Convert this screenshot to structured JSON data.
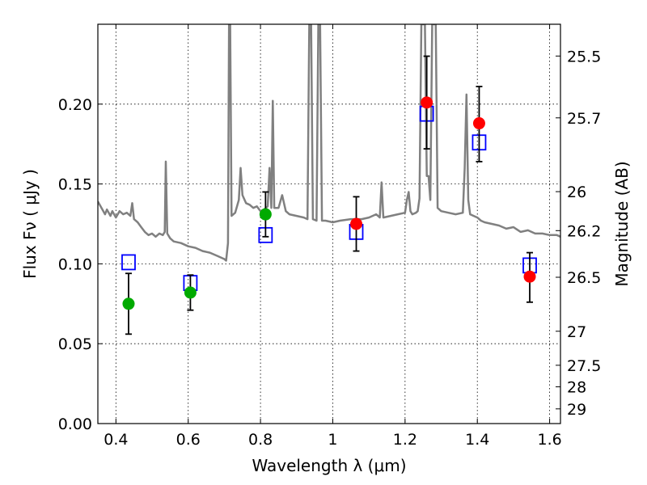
{
  "chart_data": {
    "type": "scatter",
    "title": "",
    "xlabel": "Wavelength  λ (μm)",
    "ylabel": "Flux  Fν  ( μJy )",
    "right_ylabel": "Magnitude (AB)",
    "xlim": [
      0.35,
      1.63
    ],
    "ylim": [
      0.0,
      0.25
    ],
    "grid": true,
    "x_ticks": [
      0.4,
      0.6,
      0.8,
      1.0,
      1.2,
      1.4,
      1.6
    ],
    "x_tick_labels": [
      "0.4",
      "0.6",
      "0.8",
      "1",
      "1.2",
      "1.4",
      "1.6"
    ],
    "y_ticks": [
      0.0,
      0.05,
      0.1,
      0.15,
      0.2
    ],
    "y_tick_labels": [
      "0.00",
      "0.05",
      "0.10",
      "0.15",
      "0.20"
    ],
    "right_ticks": [
      {
        "label": "25.5",
        "flux": 0.2301
      },
      {
        "label": "25.7",
        "flux": 0.1914
      },
      {
        "label": "26",
        "flux": 0.1452
      },
      {
        "label": "26.2",
        "flux": 0.1208
      },
      {
        "label": "26.5",
        "flux": 0.0916
      },
      {
        "label": "27",
        "flux": 0.0578
      },
      {
        "label": "27.5",
        "flux": 0.0365
      },
      {
        "label": "28",
        "flux": 0.023
      },
      {
        "label": "29",
        "flux": 0.0092
      }
    ],
    "series": [
      {
        "name": "",
        "kind": "errorbar-circles",
        "color": "#00aa00",
        "points": [
          {
            "x": 0.435,
            "y": 0.075,
            "yerr_low": 0.056,
            "yerr_high": 0.094
          },
          {
            "x": 0.606,
            "y": 0.082,
            "yerr_low": 0.071,
            "yerr_high": 0.093
          },
          {
            "x": 0.814,
            "y": 0.131,
            "yerr_low": 0.117,
            "yerr_high": 0.145
          }
        ]
      },
      {
        "name": "",
        "kind": "errorbar-circles",
        "color": "#ff0000",
        "points": [
          {
            "x": 1.065,
            "y": 0.125,
            "yerr_low": 0.108,
            "yerr_high": 0.142
          },
          {
            "x": 1.26,
            "y": 0.201,
            "yerr_low": 0.172,
            "yerr_high": 0.23
          },
          {
            "x": 1.405,
            "y": 0.188,
            "yerr_low": 0.164,
            "yerr_high": 0.211
          },
          {
            "x": 1.545,
            "y": 0.092,
            "yerr_low": 0.076,
            "yerr_high": 0.107
          }
        ]
      },
      {
        "name": "",
        "kind": "open-squares",
        "color": "#0000ff",
        "points": [
          {
            "x": 0.435,
            "y": 0.101
          },
          {
            "x": 0.606,
            "y": 0.088
          },
          {
            "x": 0.814,
            "y": 0.118
          },
          {
            "x": 1.065,
            "y": 0.12
          },
          {
            "x": 1.26,
            "y": 0.194
          },
          {
            "x": 1.405,
            "y": 0.176
          },
          {
            "x": 1.545,
            "y": 0.099
          }
        ]
      },
      {
        "name": "",
        "kind": "line",
        "color": "#808080",
        "points": [
          [
            0.35,
            0.139
          ],
          [
            0.36,
            0.135
          ],
          [
            0.37,
            0.131
          ],
          [
            0.375,
            0.134
          ],
          [
            0.385,
            0.13
          ],
          [
            0.39,
            0.133
          ],
          [
            0.4,
            0.129
          ],
          [
            0.41,
            0.133
          ],
          [
            0.42,
            0.131
          ],
          [
            0.43,
            0.132
          ],
          [
            0.44,
            0.13
          ],
          [
            0.445,
            0.138
          ],
          [
            0.45,
            0.128
          ],
          [
            0.46,
            0.126
          ],
          [
            0.47,
            0.123
          ],
          [
            0.48,
            0.12
          ],
          [
            0.49,
            0.118
          ],
          [
            0.5,
            0.119
          ],
          [
            0.51,
            0.117
          ],
          [
            0.52,
            0.119
          ],
          [
            0.53,
            0.118
          ],
          [
            0.535,
            0.12
          ],
          [
            0.538,
            0.164
          ],
          [
            0.542,
            0.119
          ],
          [
            0.55,
            0.116
          ],
          [
            0.56,
            0.114
          ],
          [
            0.58,
            0.113
          ],
          [
            0.6,
            0.111
          ],
          [
            0.62,
            0.11
          ],
          [
            0.64,
            0.108
          ],
          [
            0.66,
            0.107
          ],
          [
            0.68,
            0.105
          ],
          [
            0.7,
            0.103
          ],
          [
            0.705,
            0.102
          ],
          [
            0.71,
            0.113
          ],
          [
            0.713,
            0.25
          ],
          [
            0.716,
            0.25
          ],
          [
            0.72,
            0.13
          ],
          [
            0.73,
            0.132
          ],
          [
            0.74,
            0.14
          ],
          [
            0.745,
            0.16
          ],
          [
            0.75,
            0.143
          ],
          [
            0.76,
            0.138
          ],
          [
            0.77,
            0.137
          ],
          [
            0.78,
            0.135
          ],
          [
            0.79,
            0.136
          ],
          [
            0.8,
            0.133
          ],
          [
            0.81,
            0.134
          ],
          [
            0.82,
            0.136
          ],
          [
            0.825,
            0.16
          ],
          [
            0.83,
            0.135
          ],
          [
            0.834,
            0.202
          ],
          [
            0.838,
            0.135
          ],
          [
            0.85,
            0.135
          ],
          [
            0.86,
            0.143
          ],
          [
            0.87,
            0.133
          ],
          [
            0.88,
            0.131
          ],
          [
            0.9,
            0.13
          ],
          [
            0.92,
            0.129
          ],
          [
            0.93,
            0.128
          ],
          [
            0.935,
            0.25
          ],
          [
            0.94,
            0.25
          ],
          [
            0.945,
            0.128
          ],
          [
            0.955,
            0.127
          ],
          [
            0.96,
            0.25
          ],
          [
            0.965,
            0.25
          ],
          [
            0.97,
            0.127
          ],
          [
            0.98,
            0.127
          ],
          [
            1.0,
            0.126
          ],
          [
            1.02,
            0.127
          ],
          [
            1.05,
            0.128
          ],
          [
            1.08,
            0.128
          ],
          [
            1.1,
            0.129
          ],
          [
            1.12,
            0.131
          ],
          [
            1.13,
            0.129
          ],
          [
            1.135,
            0.151
          ],
          [
            1.14,
            0.129
          ],
          [
            1.16,
            0.13
          ],
          [
            1.18,
            0.131
          ],
          [
            1.2,
            0.132
          ],
          [
            1.205,
            0.14
          ],
          [
            1.21,
            0.145
          ],
          [
            1.215,
            0.133
          ],
          [
            1.22,
            0.131
          ],
          [
            1.23,
            0.132
          ],
          [
            1.235,
            0.133
          ],
          [
            1.24,
            0.141
          ],
          [
            1.245,
            0.25
          ],
          [
            1.25,
            0.25
          ],
          [
            1.255,
            0.25
          ],
          [
            1.26,
            0.155
          ],
          [
            1.265,
            0.155
          ],
          [
            1.27,
            0.14
          ],
          [
            1.275,
            0.25
          ],
          [
            1.285,
            0.25
          ],
          [
            1.29,
            0.135
          ],
          [
            1.3,
            0.133
          ],
          [
            1.32,
            0.132
          ],
          [
            1.34,
            0.131
          ],
          [
            1.36,
            0.132
          ],
          [
            1.365,
            0.16
          ],
          [
            1.37,
            0.206
          ],
          [
            1.375,
            0.14
          ],
          [
            1.38,
            0.131
          ],
          [
            1.4,
            0.129
          ],
          [
            1.41,
            0.127
          ],
          [
            1.42,
            0.126
          ],
          [
            1.44,
            0.125
          ],
          [
            1.46,
            0.124
          ],
          [
            1.48,
            0.122
          ],
          [
            1.5,
            0.123
          ],
          [
            1.52,
            0.12
          ],
          [
            1.54,
            0.121
          ],
          [
            1.56,
            0.119
          ],
          [
            1.58,
            0.119
          ],
          [
            1.6,
            0.118
          ],
          [
            1.62,
            0.118
          ],
          [
            1.63,
            0.117
          ]
        ]
      }
    ]
  }
}
